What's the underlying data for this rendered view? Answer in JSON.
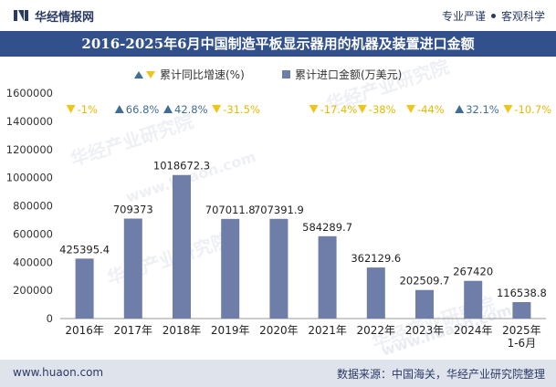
{
  "header": {
    "brand": "华经情报网",
    "slogan_left": "专业严谨",
    "slogan_right": "客观科学"
  },
  "title": "2016-2025年6月中国制造平板显示器用的机器及装置进口金额",
  "footer": {
    "website": "www.huaon.com",
    "source": "数据来源：中国海关，华经产业研究院整理"
  },
  "watermarks": [
    "华经产业研究院",
    "www.huaon.com"
  ],
  "colors": {
    "bar": "#6f7ea8",
    "up": "#3f6d96",
    "down": "#f0c419",
    "title_bg": "#32508c",
    "footer_bg": "#dfe3ec"
  },
  "chart_data": {
    "type": "bar",
    "categories": [
      "2016年",
      "2017年",
      "2018年",
      "2019年",
      "2020年",
      "2021年",
      "2022年",
      "2023年",
      "2024年",
      "2025年\n1-6月"
    ],
    "series": [
      {
        "name": "累计进口金额(万美元)",
        "values": [
          425395.4,
          709373,
          1018672.3,
          707011.8,
          707391.9,
          584289.7,
          362129.6,
          202509.7,
          267420,
          116538.8
        ],
        "labels": [
          "425395.4",
          "709373",
          "1018672.3",
          "707011.8",
          "707391.9",
          "584289.7",
          "362129.6",
          "202509.7",
          "267420",
          "116538.8"
        ]
      },
      {
        "name": "累计同比增速(%)",
        "values": [
          -1,
          66.8,
          42.8,
          -31.5,
          null,
          -17.4,
          -38,
          -44,
          32.1,
          -10.7
        ],
        "labels": [
          "-1%",
          "66.8%",
          "42.8%",
          "-31.5%",
          "",
          "-17.4%",
          "-38%",
          "-44%",
          "32.1%",
          "-10.7%"
        ]
      }
    ],
    "legend": {
      "growth": "累计同比增速(%)",
      "amount": "累计进口金额(万美元)"
    },
    "yticks": [
      "0",
      "200000",
      "400000",
      "600000",
      "800000",
      "1000000",
      "1200000",
      "1400000",
      "1600000"
    ],
    "ylim": [
      0,
      1600000
    ],
    "legend_position": "top"
  }
}
